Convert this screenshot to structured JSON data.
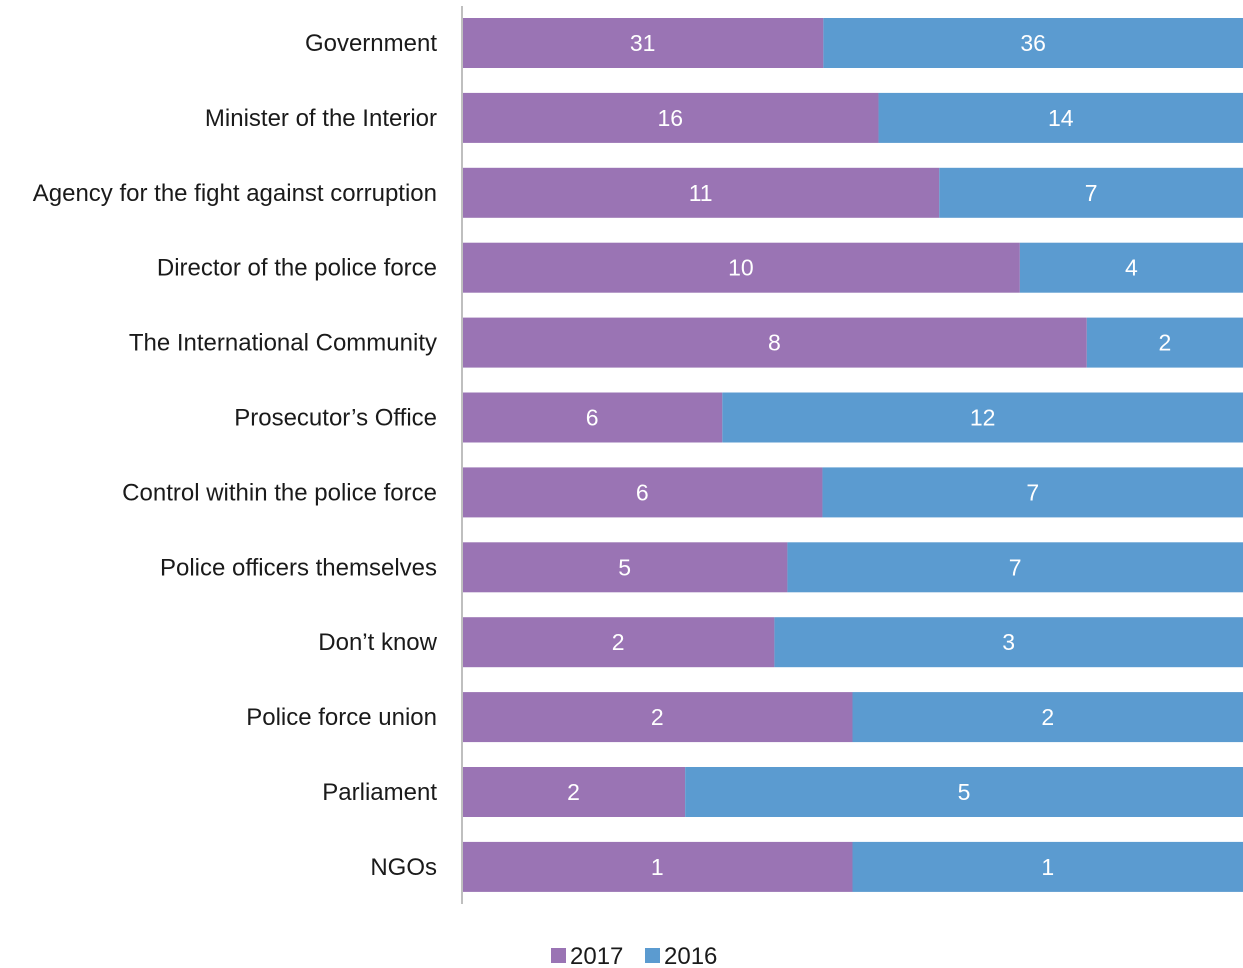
{
  "chart_data": {
    "type": "bar",
    "orientation": "horizontal",
    "stacked": "percent",
    "categories": [
      "Government",
      "Minister of the Interior",
      "Agency for the fight against corruption",
      "Director of the police force",
      "The International Community",
      "Prosecutor’s Office",
      "Control within the police force",
      "Police officers themselves",
      "Don’t know",
      "Police force union",
      "Parliament",
      "NGOs"
    ],
    "series": [
      {
        "name": "2017",
        "color": "#9a74b4",
        "values": [
          31,
          16,
          11,
          10,
          8,
          6,
          6,
          5,
          2,
          2,
          2,
          1
        ]
      },
      {
        "name": "2016",
        "color": "#5b9bd0",
        "values": [
          36,
          14,
          7,
          4,
          2,
          12,
          7,
          7,
          3,
          2,
          5,
          1
        ]
      }
    ],
    "data_labels": true,
    "grid": false,
    "legend": "bottom-center",
    "axis_color": "#bfbfbf",
    "value_label_color": "#ffffff"
  }
}
